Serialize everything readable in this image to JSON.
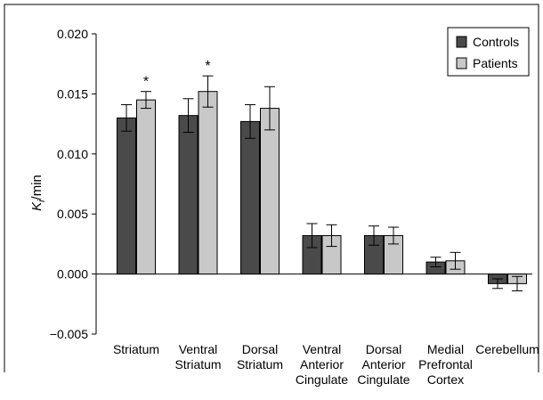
{
  "chart_data": {
    "type": "bar",
    "ylabel_main": "K",
    "ylabel_sub": "i",
    "ylabel_suffix": "/min",
    "xlabel": "",
    "ylim": [
      -0.005,
      0.02
    ],
    "y_ticks": [
      -0.005,
      0.0,
      0.005,
      0.01,
      0.015,
      0.02
    ],
    "y_tick_labels": [
      "−0.005",
      "0.000",
      "0.005",
      "0.010",
      "0.015",
      "0.020"
    ],
    "categories": [
      [
        "Striatum"
      ],
      [
        "Ventral",
        "Striatum"
      ],
      [
        "Dorsal",
        "Striatum"
      ],
      [
        "Ventral",
        "Anterior",
        "Cingulate"
      ],
      [
        "Dorsal",
        "Anterior",
        "Cingulate"
      ],
      [
        "Medial",
        "Prefrontal",
        "Cortex"
      ],
      [
        "Cerebellum"
      ]
    ],
    "series": [
      {
        "name": "Controls",
        "color": "#4a4a4a",
        "values": [
          0.013,
          0.0132,
          0.0127,
          0.0032,
          0.0032,
          0.001,
          -0.0008
        ],
        "errors": [
          0.0011,
          0.0014,
          0.0014,
          0.001,
          0.0008,
          0.0004,
          0.0004
        ]
      },
      {
        "name": "Patients",
        "color": "#c8c8c8",
        "values": [
          0.0145,
          0.0152,
          0.0138,
          0.0032,
          0.0032,
          0.0011,
          -0.0008
        ],
        "errors": [
          0.0007,
          0.0013,
          0.0018,
          0.0009,
          0.0007,
          0.0007,
          0.0006
        ]
      }
    ],
    "annotations": [
      {
        "category_index": 0,
        "series_index": 1,
        "text": "*"
      },
      {
        "category_index": 1,
        "series_index": 1,
        "text": "*"
      }
    ],
    "legend_position": "top-right",
    "grid": false
  }
}
